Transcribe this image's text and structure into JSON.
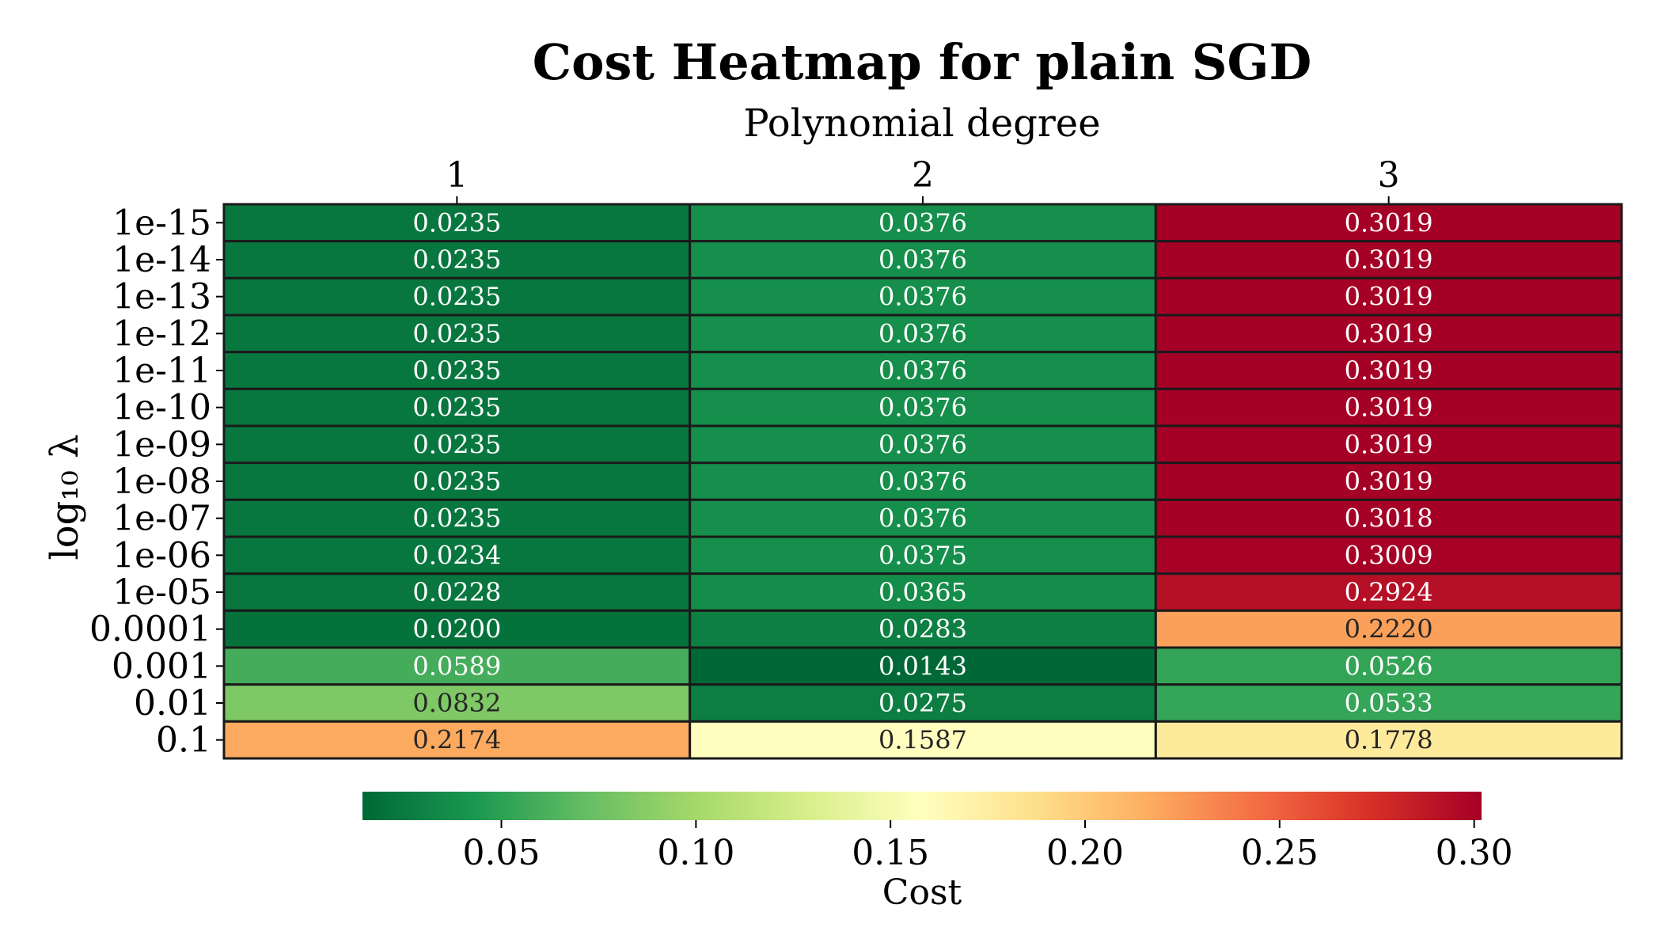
{
  "chart_data": {
    "type": "heatmap",
    "title": "Cost Heatmap for plain SGD",
    "xlabel": "Polynomial degree",
    "ylabel": "log₁₀ λ",
    "x_categories": [
      "1",
      "2",
      "3"
    ],
    "y_categories": [
      "1e-15",
      "1e-14",
      "1e-13",
      "1e-12",
      "1e-11",
      "1e-10",
      "1e-09",
      "1e-08",
      "1e-07",
      "1e-06",
      "1e-05",
      "0.0001",
      "0.001",
      "0.01",
      "0.1"
    ],
    "values": [
      [
        0.0235,
        0.0376,
        0.3019
      ],
      [
        0.0235,
        0.0376,
        0.3019
      ],
      [
        0.0235,
        0.0376,
        0.3019
      ],
      [
        0.0235,
        0.0376,
        0.3019
      ],
      [
        0.0235,
        0.0376,
        0.3019
      ],
      [
        0.0235,
        0.0376,
        0.3019
      ],
      [
        0.0235,
        0.0376,
        0.3019
      ],
      [
        0.0235,
        0.0376,
        0.3019
      ],
      [
        0.0235,
        0.0376,
        0.3018
      ],
      [
        0.0234,
        0.0375,
        0.3009
      ],
      [
        0.0228,
        0.0365,
        0.2924
      ],
      [
        0.02,
        0.0283,
        0.222
      ],
      [
        0.0589,
        0.0143,
        0.0526
      ],
      [
        0.0832,
        0.0275,
        0.0533
      ],
      [
        0.2174,
        0.1587,
        0.1778
      ]
    ],
    "colormap": "RdYlGn_r",
    "vmin": 0.0143,
    "vmax": 0.3019,
    "colorbar": {
      "label": "Cost",
      "ticks": [
        0.05,
        0.1,
        0.15,
        0.2,
        0.25,
        0.3
      ],
      "tick_labels": [
        "0.05",
        "0.10",
        "0.15",
        "0.20",
        "0.25",
        "0.30"
      ],
      "orientation": "horizontal",
      "placement": "bottom"
    },
    "x_axis_position": "top",
    "grid": false
  }
}
